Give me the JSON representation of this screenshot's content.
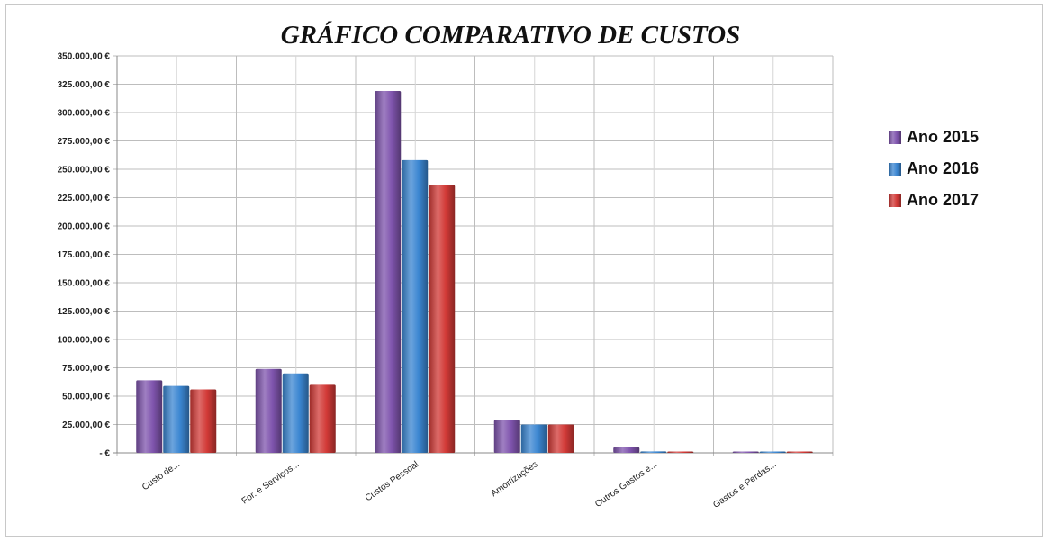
{
  "chart_data": {
    "type": "bar",
    "title": "GRÁFICO COMPARATIVO DE CUSTOS",
    "xlabel": "",
    "ylabel": "",
    "categories": [
      "Custo de...",
      "For. e Serviços...",
      "Custos  Pessoal",
      "Amortizações",
      "Outros Gastos  e...",
      "Gastos e Perdas..."
    ],
    "series": [
      {
        "name": "Ano 2015",
        "color": "#7f54ad",
        "values": [
          64000,
          74000,
          319000,
          29000,
          5000,
          300
        ]
      },
      {
        "name": "Ano 2016",
        "color": "#3b86d1",
        "values": [
          59000,
          70000,
          258000,
          25000,
          1300,
          200
        ]
      },
      {
        "name": "Ano 2017",
        "color": "#d23a37",
        "values": [
          56000,
          60000,
          236000,
          25000,
          700,
          200
        ]
      }
    ],
    "ylim": [
      0,
      350000
    ],
    "yticks": [
      "-  €",
      "25.000,00 €",
      "50.000,00 €",
      "75.000,00 €",
      "100.000,00 €",
      "125.000,00 €",
      "150.000,00 €",
      "175.000,00 €",
      "200.000,00 €",
      "225.000,00 €",
      "250.000,00 €",
      "275.000,00 €",
      "300.000,00 €",
      "325.000,00 €",
      "350.000,00 €"
    ],
    "ytick_step": 25000,
    "grid": true,
    "legend_position": "right"
  }
}
